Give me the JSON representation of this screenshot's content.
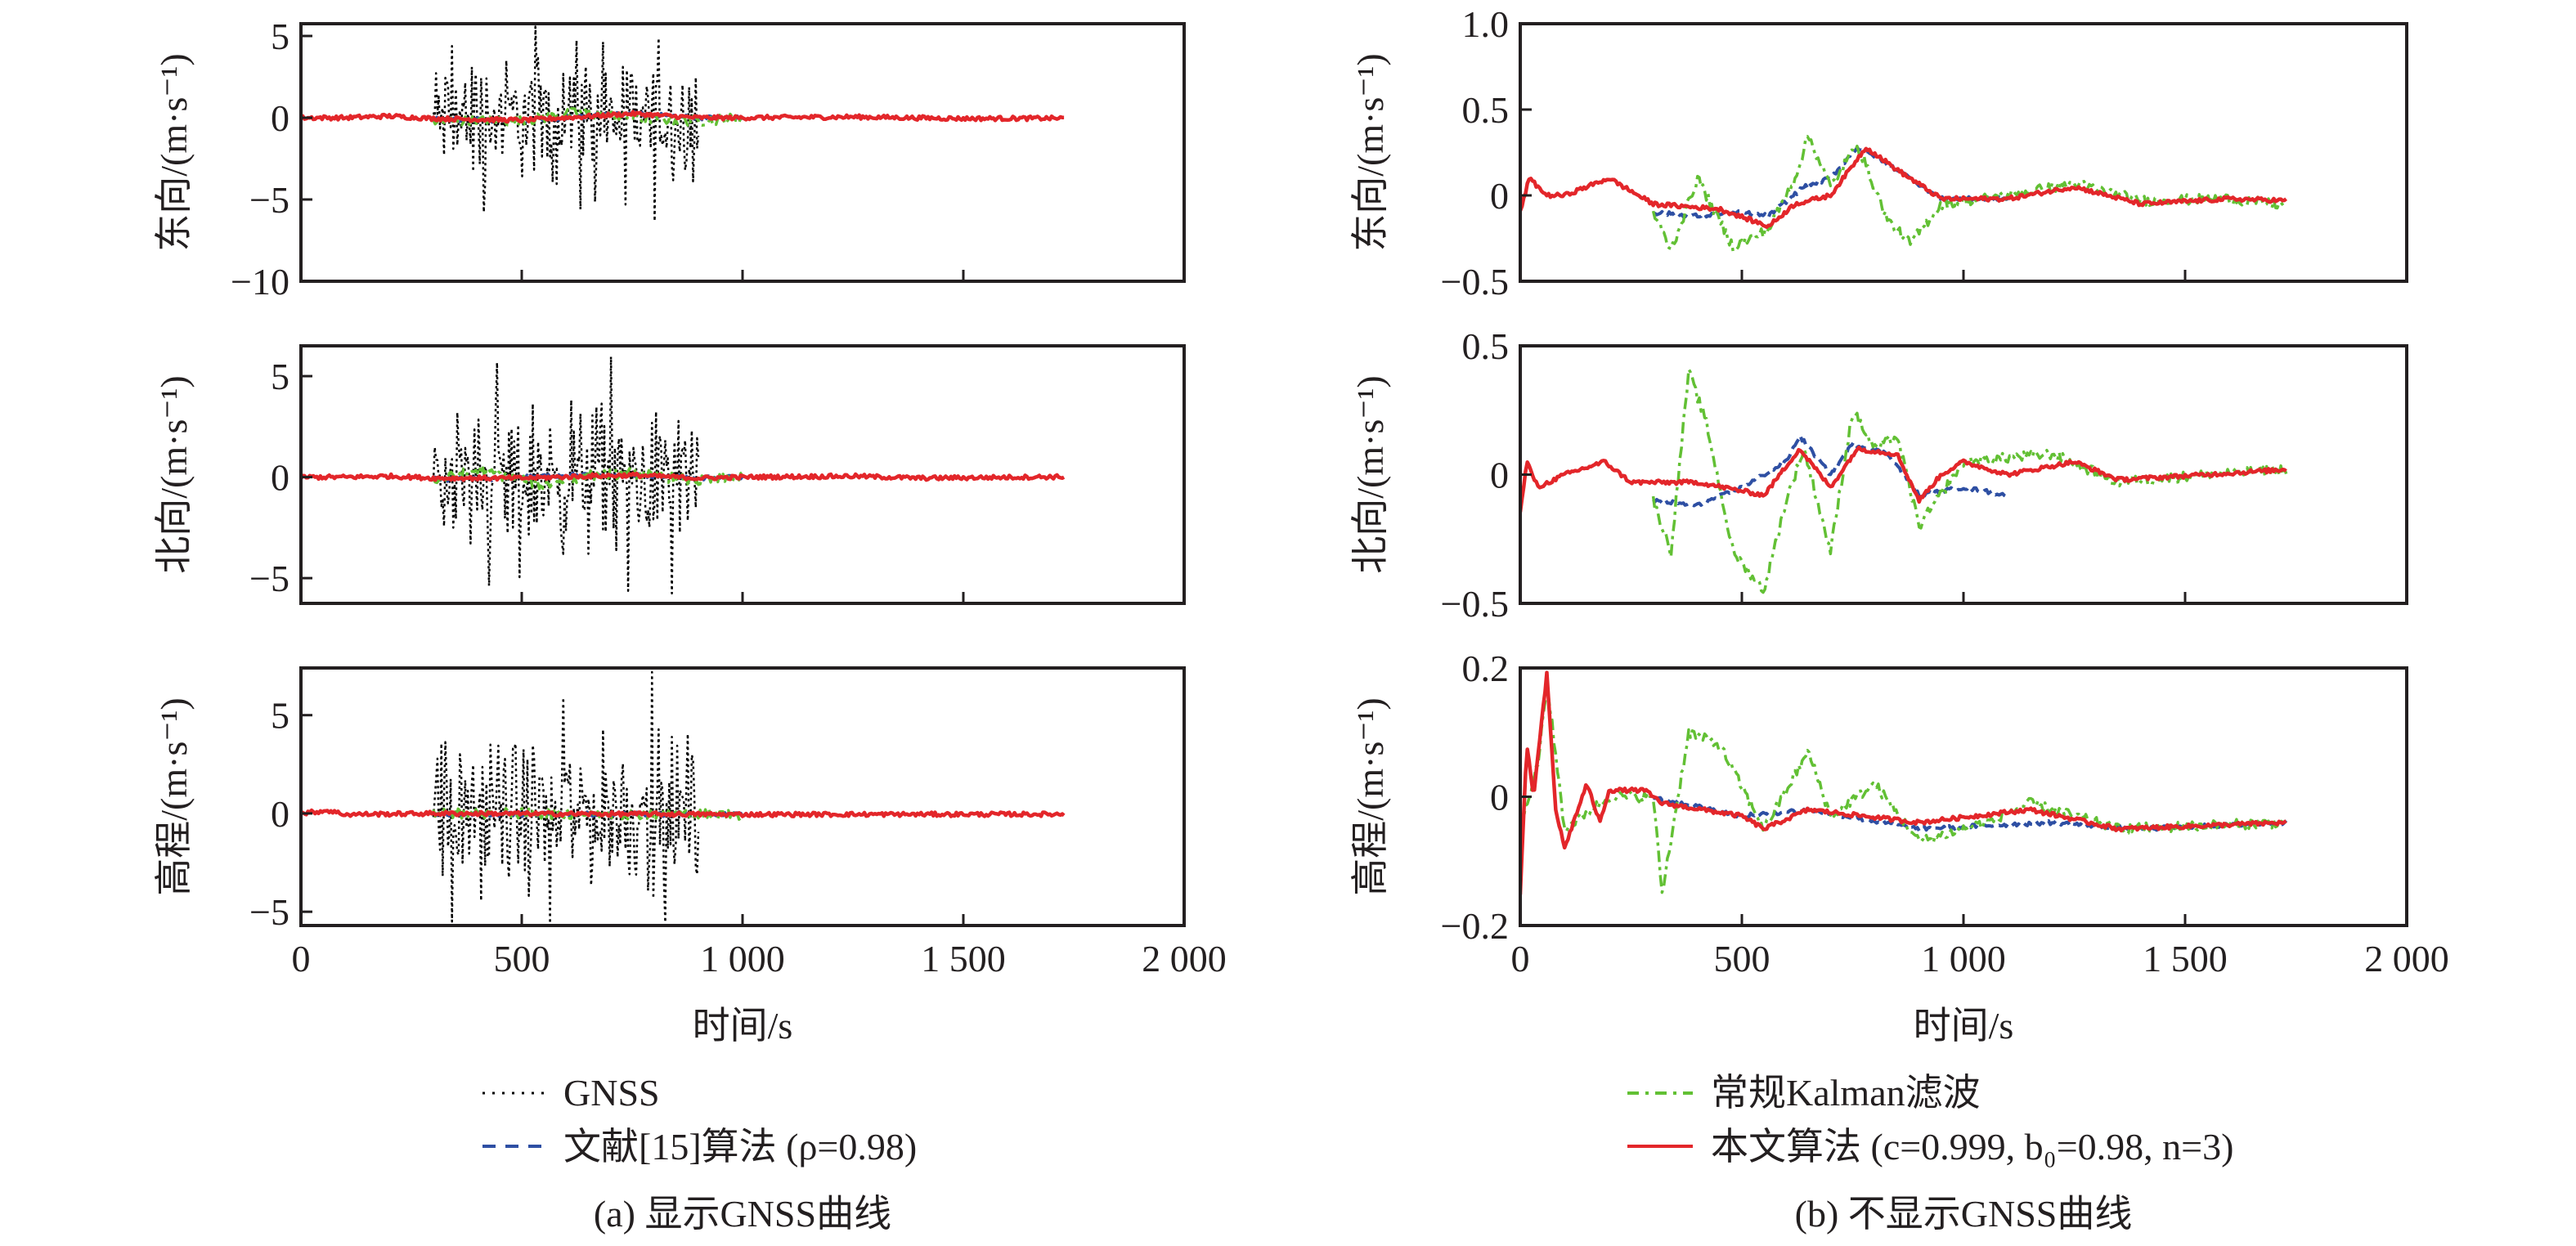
{
  "figure": {
    "panel_captions": [
      "(a) 显示GNSS曲线",
      "(b) 不显示GNSS曲线"
    ],
    "xlabel": "时间/s",
    "legend_left": [
      {
        "series": "GNSS",
        "label": "GNSS"
      },
      {
        "series": "ref15",
        "label": "文献[15]算法 (ρ=0.98)"
      }
    ],
    "legend_right": [
      {
        "series": "kalman",
        "label": "常规Kalman滤波"
      },
      {
        "series": "proposed",
        "label": "本文算法 (c=0.999, b₀=0.98, n=3)"
      }
    ]
  },
  "chart_data": [
    {
      "type": "line",
      "panel": "a",
      "row": "east",
      "ylabel": "东向/(m·s⁻¹)",
      "xlabel": "",
      "xlim": [
        0,
        2000
      ],
      "ylim": [
        -10,
        5.75
      ],
      "xticks": [
        0,
        500,
        1000,
        1500,
        2000
      ],
      "xtick_labels": [
        "0",
        "500",
        "1 000",
        "1 500",
        "2 000"
      ],
      "yticks": [
        5,
        0,
        -5,
        -10
      ],
      "ytick_labels": [
        "5",
        "0",
        "−5",
        "−10"
      ],
      "show_xtick_labels": false,
      "series": [
        {
          "name": "GNSS",
          "x_range": [
            300,
            900
          ],
          "noise_amplitude": 2.2,
          "max": 5.6,
          "min": -6.8
        },
        {
          "name": "文献[15]算法 (ρ=0.98)",
          "x": [
            300,
            500,
            600,
            750,
            900,
            1000
          ],
          "y": [
            -0.1,
            -0.15,
            0.0,
            0.25,
            0.0,
            0.0
          ]
        },
        {
          "name": "常规Kalman滤波",
          "x": [
            300,
            500,
            620,
            760,
            900,
            1000
          ],
          "y": [
            -0.2,
            -0.2,
            0.3,
            0.0,
            -0.2,
            0.0
          ]
        },
        {
          "name": "本文算法 (c=0.999, b₀=0.98, n=3)",
          "x": [
            0,
            100,
            200,
            300,
            500,
            600,
            750,
            900,
            1000,
            1250,
            1500,
            1730
          ],
          "y": [
            0.0,
            0.0,
            0.1,
            -0.05,
            -0.15,
            0.0,
            0.25,
            0.0,
            0.0,
            0.05,
            -0.05,
            -0.03
          ]
        }
      ]
    },
    {
      "type": "line",
      "panel": "a",
      "row": "north",
      "ylabel": "北向/(m·s⁻¹)",
      "xlabel": "",
      "xlim": [
        0,
        2000
      ],
      "ylim": [
        -6.25,
        6.5
      ],
      "xticks": [
        0,
        500,
        1000,
        1500,
        2000
      ],
      "xtick_labels": [
        "0",
        "500",
        "1 000",
        "1 500",
        "2 000"
      ],
      "yticks": [
        5,
        0,
        -5
      ],
      "ytick_labels": [
        "5",
        "0",
        "−5"
      ],
      "show_xtick_labels": false,
      "series": [
        {
          "name": "GNSS",
          "x_range": [
            300,
            900
          ],
          "noise_amplitude": 2.2,
          "max": 6.4,
          "min": -6.0
        },
        {
          "name": "文献[15]算法 (ρ=0.98)",
          "x": [
            300,
            400,
            600,
            750,
            900,
            1000
          ],
          "y": [
            -0.1,
            -0.1,
            0.1,
            0.1,
            -0.05,
            0.0
          ]
        },
        {
          "name": "常规Kalman滤波",
          "x": [
            300,
            400,
            550,
            650,
            750,
            900,
            1000
          ],
          "y": [
            -0.2,
            0.35,
            -0.4,
            0.1,
            0.2,
            -0.2,
            0.0
          ]
        },
        {
          "name": "本文算法 (c=0.999, b₀=0.98, n=3)",
          "x": [
            0,
            100,
            200,
            300,
            500,
            650,
            750,
            900,
            1000,
            1250,
            1400,
            1730
          ],
          "y": [
            0.0,
            0.0,
            0.05,
            -0.05,
            -0.05,
            0.05,
            0.1,
            -0.05,
            0.0,
            0.05,
            -0.05,
            0.02
          ]
        }
      ]
    },
    {
      "type": "line",
      "panel": "a",
      "row": "up",
      "ylabel": "高程/(m·s⁻¹)",
      "xlabel": "时间/s",
      "xlim": [
        0,
        2000
      ],
      "ylim": [
        -5.7,
        7.4
      ],
      "xticks": [
        0,
        500,
        1000,
        1500,
        2000
      ],
      "xtick_labels": [
        "0",
        "500",
        "1 000",
        "1 500",
        "2 000"
      ],
      "yticks": [
        5,
        0,
        -5
      ],
      "ytick_labels": [
        "5",
        "0",
        "−5"
      ],
      "show_xtick_labels": true,
      "series": [
        {
          "name": "GNSS",
          "x_range": [
            300,
            900
          ],
          "noise_amplitude": 2.2,
          "max": 7.2,
          "min": -5.6
        },
        {
          "name": "文献[15]算法 (ρ=0.98)",
          "x": [
            300,
            1000
          ],
          "y": [
            -0.03,
            -0.05
          ]
        },
        {
          "name": "常规Kalman滤波",
          "x": [
            300,
            1000
          ],
          "y": [
            0.02,
            -0.05
          ]
        },
        {
          "name": "本文算法 (c=0.999, b₀=0.98, n=3)",
          "x": [
            0,
            60,
            100,
            300,
            1000,
            1730
          ],
          "y": [
            0.0,
            0.15,
            -0.05,
            0.0,
            -0.05,
            -0.04
          ]
        }
      ]
    },
    {
      "type": "line",
      "panel": "b",
      "row": "east",
      "ylabel": "东向/(m·s⁻¹)",
      "xlabel": "",
      "xlim": [
        0,
        2000
      ],
      "ylim": [
        -0.5,
        1.0
      ],
      "xticks": [
        0,
        500,
        1000,
        1500,
        2000
      ],
      "xtick_labels": [
        "0",
        "500",
        "1 000",
        "1 500",
        "2 000"
      ],
      "yticks": [
        1.0,
        0.5,
        0,
        -0.5
      ],
      "ytick_labels": [
        "1.0",
        "0.5",
        "0",
        "−0.5"
      ],
      "show_xtick_labels": false,
      "series": [
        {
          "name": "文献[15]算法 (ρ=0.98)",
          "x": [
            300,
            400,
            500,
            560,
            640,
            700,
            760,
            850,
            950,
            1100
          ],
          "y": [
            -0.1,
            -0.12,
            -0.1,
            -0.12,
            0.05,
            0.1,
            0.28,
            0.15,
            -0.02,
            -0.02
          ]
        },
        {
          "name": "常规Kalman滤波",
          "x": [
            300,
            340,
            400,
            480,
            560,
            620,
            650,
            700,
            760,
            830,
            880,
            950,
            1100,
            1250,
            1400,
            1600,
            1730
          ],
          "y": [
            -0.1,
            -0.32,
            0.1,
            -0.3,
            -0.2,
            0.1,
            0.35,
            0.05,
            0.3,
            -0.15,
            -0.28,
            -0.05,
            0.0,
            0.07,
            -0.03,
            -0.02,
            -0.06
          ]
        },
        {
          "name": "本文算法 (c=0.999, b₀=0.98, n=3)",
          "x": [
            0,
            20,
            60,
            100,
            200,
            300,
            450,
            560,
            620,
            700,
            780,
            850,
            950,
            1100,
            1250,
            1400,
            1600,
            1730
          ],
          "y": [
            -0.1,
            0.1,
            0.0,
            0.0,
            0.1,
            -0.05,
            -0.08,
            -0.18,
            -0.05,
            0.0,
            0.28,
            0.15,
            -0.02,
            -0.02,
            0.05,
            -0.05,
            -0.02,
            -0.03
          ]
        }
      ]
    },
    {
      "type": "line",
      "panel": "b",
      "row": "north",
      "ylabel": "北向/(m·s⁻¹)",
      "xlabel": "",
      "xlim": [
        0,
        2000
      ],
      "ylim": [
        -0.5,
        0.5
      ],
      "xticks": [
        0,
        500,
        1000,
        1500,
        2000
      ],
      "xtick_labels": [
        "0",
        "500",
        "1 000",
        "1 500",
        "2 000"
      ],
      "yticks": [
        0.5,
        0,
        -0.5
      ],
      "ytick_labels": [
        "0.5",
        "0",
        "−0.5"
      ],
      "show_xtick_labels": false,
      "series": [
        {
          "name": "文献[15]算法 (ρ=0.98)",
          "x": [
            300,
            400,
            500,
            600,
            630,
            700,
            750,
            830,
            900,
            1000,
            1100
          ],
          "y": [
            -0.1,
            -0.12,
            -0.05,
            0.05,
            0.15,
            0.0,
            0.12,
            0.08,
            -0.08,
            -0.05,
            -0.08
          ]
        },
        {
          "name": "常规Kalman滤波",
          "x": [
            300,
            340,
            380,
            420,
            480,
            550,
            600,
            640,
            700,
            750,
            800,
            850,
            900,
            1000,
            1200,
            1350,
            1550,
            1730
          ],
          "y": [
            -0.1,
            -0.3,
            0.4,
            0.2,
            -0.3,
            -0.45,
            -0.1,
            0.1,
            -0.3,
            0.25,
            0.1,
            0.15,
            -0.2,
            0.05,
            0.08,
            -0.03,
            0.0,
            0.02
          ]
        },
        {
          "name": "本文算法 (c=0.999, b₀=0.98, n=3)",
          "x": [
            0,
            15,
            40,
            100,
            190,
            250,
            400,
            550,
            630,
            700,
            760,
            850,
            900,
            950,
            1000,
            1100,
            1250,
            1350,
            1550,
            1730
          ],
          "y": [
            -0.15,
            0.05,
            -0.05,
            0.0,
            0.05,
            -0.03,
            -0.03,
            -0.08,
            0.1,
            -0.05,
            0.1,
            0.08,
            -0.1,
            0.0,
            0.05,
            0.0,
            0.05,
            -0.02,
            0.0,
            0.02
          ]
        }
      ]
    },
    {
      "type": "line",
      "panel": "b",
      "row": "up",
      "ylabel": "高程/(m·s⁻¹)",
      "xlabel": "时间/s",
      "xlim": [
        0,
        2000
      ],
      "ylim": [
        -0.2,
        0.2
      ],
      "xticks": [
        0,
        500,
        1000,
        1500,
        2000
      ],
      "xtick_labels": [
        "0",
        "500",
        "1 000",
        "1 500",
        "2 000"
      ],
      "yticks": [
        0.2,
        0,
        -0.2
      ],
      "ytick_labels": [
        "0.2",
        "0",
        "−0.2"
      ],
      "show_xtick_labels": true,
      "series": [
        {
          "name": "文献[15]算法 (ρ=0.98)",
          "x": [
            300,
            500,
            650,
            900,
            1200,
            1400,
            1730
          ],
          "y": [
            0.0,
            -0.03,
            -0.02,
            -0.05,
            -0.04,
            -0.05,
            -0.04
          ]
        },
        {
          "name": "常规Kalman滤波",
          "x": [
            0,
            40,
            60,
            100,
            200,
            300,
            320,
            380,
            450,
            550,
            650,
            700,
            800,
            900,
            1050,
            1150,
            1350,
            1730
          ],
          "y": [
            -0.05,
            0.05,
            0.18,
            -0.05,
            0.0,
            0.0,
            -0.15,
            0.1,
            0.08,
            -0.05,
            0.07,
            -0.03,
            0.02,
            -0.07,
            -0.04,
            -0.01,
            -0.05,
            -0.04
          ]
        },
        {
          "name": "本文算法 (c=0.999, b₀=0.98, n=3)",
          "x": [
            0,
            15,
            30,
            60,
            80,
            100,
            150,
            180,
            200,
            280,
            320,
            500,
            550,
            650,
            900,
            1150,
            1350,
            1730
          ],
          "y": [
            -0.15,
            0.08,
            0.0,
            0.19,
            -0.02,
            -0.08,
            0.02,
            -0.04,
            0.01,
            0.01,
            -0.01,
            -0.03,
            -0.05,
            -0.02,
            -0.04,
            -0.02,
            -0.05,
            -0.04
          ]
        }
      ]
    }
  ],
  "colors": {
    "GNSS": "#000000",
    "ref15": "#2e4fa3",
    "kalman": "#62c034",
    "proposed": "#e3262a",
    "axis": "#231f20"
  }
}
